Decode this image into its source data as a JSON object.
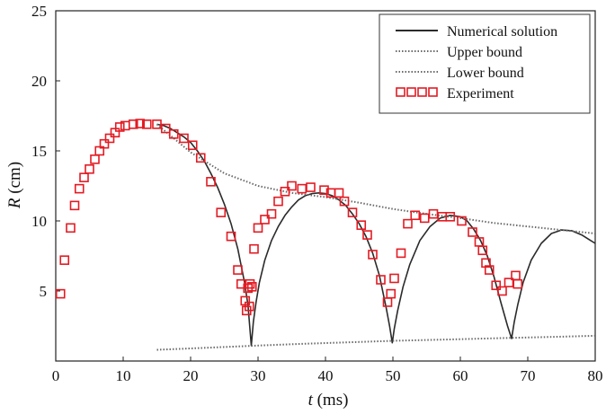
{
  "colors": {
    "numerical": "#2b2b2b",
    "bounds": "#6a6a6a",
    "experiment": "#e31b23"
  },
  "chart_data": {
    "type": "line",
    "xlabel_italic": "t",
    "xlabel_rest": " (ms)",
    "ylabel_italic": "R",
    "ylabel_rest": " (cm)",
    "xlim": [
      0,
      80
    ],
    "ylim": [
      0,
      25
    ],
    "xticks": [
      0,
      10,
      20,
      30,
      40,
      50,
      60,
      70,
      80
    ],
    "yticks": [
      5,
      10,
      15,
      20,
      25
    ],
    "grid": false,
    "legend_position": "top-right",
    "legend": [
      "Numerical solution",
      "Upper bound",
      "Lower bound",
      "Experiment"
    ],
    "series": [
      {
        "name": "Numerical solution",
        "style": "solid",
        "x": [
          15,
          16,
          17,
          18,
          19,
          20,
          21,
          22,
          23,
          24,
          25,
          26,
          27,
          28,
          28.5,
          29,
          29.3,
          29.7,
          30.2,
          31,
          32,
          33,
          34,
          35,
          36,
          37,
          38,
          39,
          40,
          41,
          42,
          43,
          44,
          45,
          46,
          47,
          48,
          49,
          49.5,
          49.9,
          50.2,
          50.7,
          51.5,
          52.5,
          54,
          55.5,
          57,
          58.5,
          60,
          61,
          62,
          63,
          64,
          65,
          66,
          67,
          67.6,
          68,
          68.5,
          69.3,
          70.5,
          72,
          73.5,
          75,
          76.5,
          78,
          79,
          80
        ],
        "y": [
          16.9,
          16.8,
          16.6,
          16.3,
          16.0,
          15.6,
          15.0,
          14.3,
          13.4,
          12.4,
          11.2,
          9.8,
          8.0,
          5.6,
          4.0,
          1.1,
          2.8,
          4.2,
          5.6,
          7.2,
          8.6,
          9.6,
          10.4,
          11.0,
          11.5,
          11.8,
          11.95,
          12.0,
          11.95,
          11.8,
          11.5,
          11.1,
          10.5,
          9.8,
          8.9,
          7.7,
          6.1,
          3.8,
          2.5,
          1.3,
          2.3,
          3.6,
          5.3,
          6.9,
          8.6,
          9.6,
          10.2,
          10.4,
          10.3,
          10.0,
          9.4,
          8.6,
          7.5,
          6.0,
          4.2,
          2.5,
          1.6,
          2.8,
          4.0,
          5.6,
          7.2,
          8.4,
          9.1,
          9.35,
          9.3,
          9.0,
          8.7,
          8.4
        ]
      },
      {
        "name": "Upper bound",
        "style": "dotted",
        "x": [
          15,
          20,
          25,
          30,
          35,
          40,
          45,
          50,
          55,
          60,
          65,
          70,
          75,
          80
        ],
        "y": [
          16.9,
          14.9,
          13.4,
          12.5,
          12.0,
          11.7,
          11.3,
          10.85,
          10.5,
          10.2,
          9.85,
          9.6,
          9.35,
          9.1
        ]
      },
      {
        "name": "Lower bound",
        "style": "dotted",
        "x": [
          15,
          20,
          25,
          30,
          35,
          40,
          45,
          50,
          55,
          60,
          65,
          70,
          75,
          80
        ],
        "y": [
          0.8,
          0.9,
          1.0,
          1.1,
          1.2,
          1.28,
          1.36,
          1.44,
          1.5,
          1.56,
          1.62,
          1.68,
          1.74,
          1.8
        ]
      },
      {
        "name": "Experiment",
        "style": "squares",
        "x": [
          0.7,
          1.3,
          2.2,
          2.8,
          3.5,
          4.2,
          5,
          5.8,
          6.5,
          7.2,
          8,
          8.8,
          9.5,
          10.3,
          11.5,
          12.5,
          13.5,
          15,
          16.3,
          17.5,
          19,
          20.3,
          21.5,
          23,
          24.5,
          26,
          27,
          27.5,
          28.1,
          28.3,
          28.7,
          28.5,
          28.8,
          29.1,
          29.4,
          30,
          31,
          32,
          33,
          34,
          35,
          36.5,
          37.8,
          39.8,
          40.8,
          42,
          42.8,
          44,
          45.3,
          46.2,
          47,
          48.2,
          49.2,
          49.7,
          50.2,
          51.2,
          52.2,
          53.3,
          54.7,
          56,
          57.3,
          58.5,
          60.2,
          61.8,
          62.8,
          63.3,
          63.8,
          64.3,
          65.3,
          66.2,
          67.2,
          68.2,
          68.5
        ],
        "y": [
          4.8,
          7.2,
          9.5,
          11.1,
          12.3,
          13.1,
          13.7,
          14.4,
          15.0,
          15.5,
          15.9,
          16.3,
          16.7,
          16.8,
          16.9,
          16.95,
          16.9,
          16.9,
          16.6,
          16.2,
          15.9,
          15.4,
          14.5,
          12.8,
          10.6,
          8.9,
          6.5,
          5.5,
          4.3,
          3.6,
          3.9,
          5.2,
          5.5,
          5.3,
          8.0,
          9.5,
          10.1,
          10.5,
          11.4,
          12.1,
          12.5,
          12.3,
          12.4,
          12.2,
          12.0,
          12.0,
          11.4,
          10.6,
          9.7,
          9.0,
          7.6,
          5.8,
          4.2,
          4.8,
          5.9,
          7.7,
          9.8,
          10.4,
          10.2,
          10.5,
          10.3,
          10.3,
          10.0,
          9.2,
          8.5,
          7.9,
          7.0,
          6.5,
          5.4,
          5.0,
          5.6,
          6.1,
          5.5
        ]
      }
    ]
  }
}
